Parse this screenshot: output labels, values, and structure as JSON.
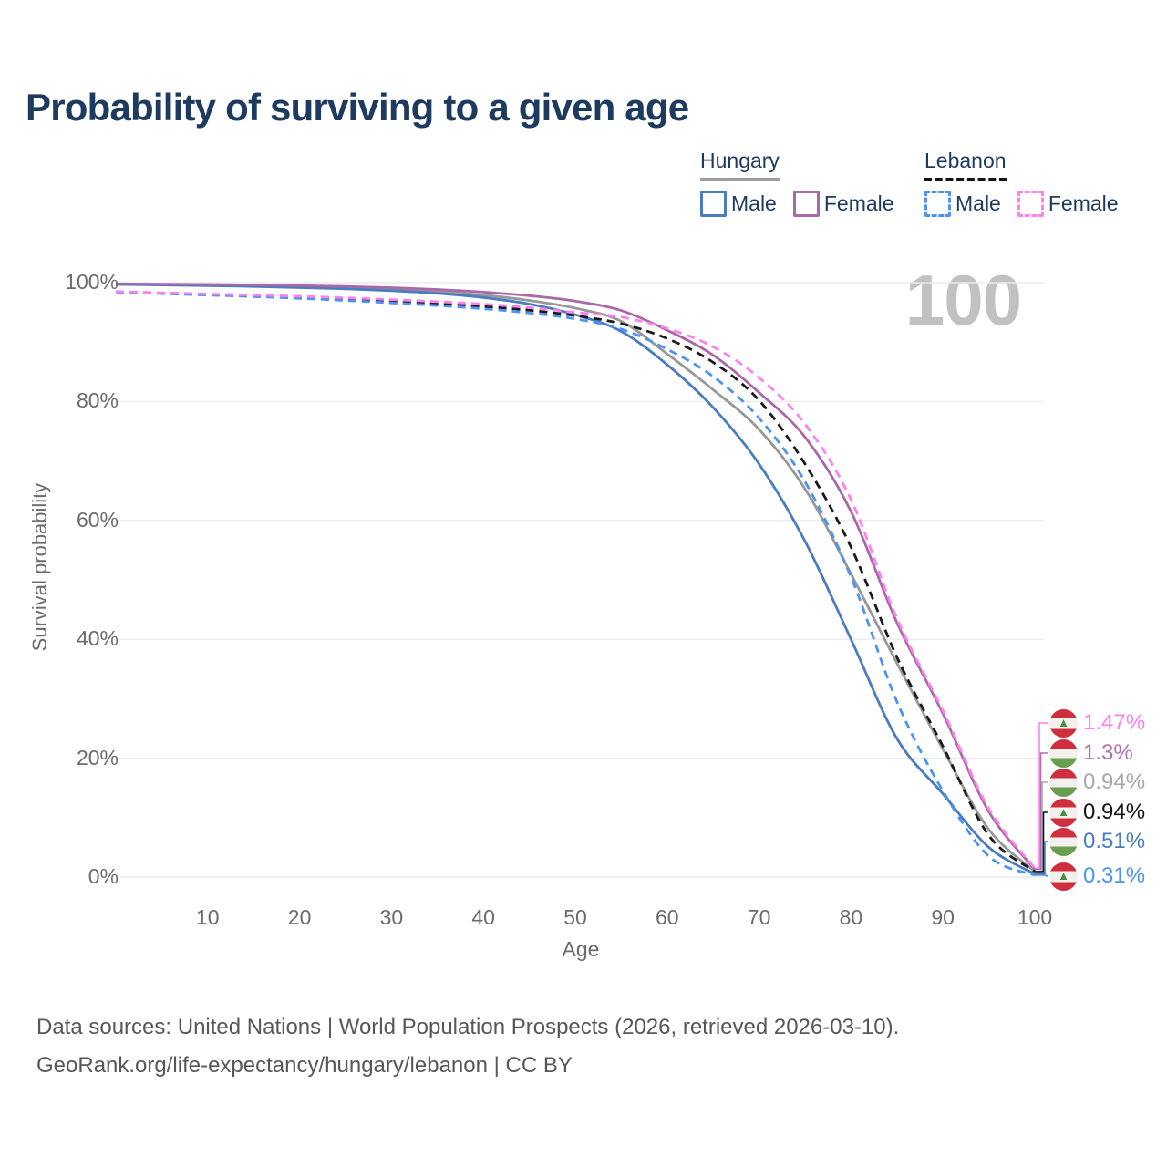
{
  "title": "Probability of surviving to a given age",
  "watermark": "100",
  "legend": {
    "groups": [
      {
        "country": "Hungary",
        "style": "solid",
        "items": [
          {
            "label": "Male",
            "color": "#4a7cc2"
          },
          {
            "label": "Female",
            "color": "#ab68a7"
          }
        ]
      },
      {
        "country": "Lebanon",
        "style": "dashed",
        "items": [
          {
            "label": "Male",
            "color": "#4c93f2"
          },
          {
            "label": "Female",
            "color": "#ff80ee"
          }
        ]
      }
    ]
  },
  "chart_data": {
    "type": "line",
    "title": "Probability of surviving to a given age",
    "xlabel": "Age",
    "ylabel": "Survival probability",
    "xlim": [
      0,
      100
    ],
    "ylim": [
      0,
      100
    ],
    "grid": "horizontal",
    "x_ticks": [
      10,
      20,
      30,
      40,
      50,
      60,
      70,
      80,
      90,
      100
    ],
    "y_ticks": [
      "0%",
      "20%",
      "40%",
      "60%",
      "80%",
      "100%"
    ],
    "y_tick_values": [
      0,
      20,
      40,
      60,
      80,
      100
    ],
    "x": [
      0,
      5,
      10,
      15,
      20,
      25,
      30,
      35,
      40,
      45,
      50,
      55,
      60,
      65,
      70,
      75,
      80,
      85,
      90,
      95,
      100
    ],
    "series": [
      {
        "name": "Hungary Total",
        "color": "#989898",
        "dash": false,
        "end_label": "0.94%",
        "values": [
          99.75,
          99.68,
          99.6,
          99.48,
          99.32,
          99.15,
          98.9,
          98.5,
          97.9,
          97.0,
          95.7,
          93.5,
          88.0,
          82.0,
          75.3,
          65.3,
          51.0,
          36.0,
          21.5,
          8.0,
          0.94
        ]
      },
      {
        "name": "Hungary Male",
        "color": "#4a7cc2",
        "dash": false,
        "end_label": "0.51%",
        "values": [
          99.7,
          99.6,
          99.5,
          99.35,
          99.15,
          98.95,
          98.65,
          98.2,
          97.5,
          96.4,
          94.6,
          91.8,
          86.2,
          79.0,
          69.5,
          56.5,
          40.0,
          23.3,
          14.0,
          5.0,
          0.51
        ]
      },
      {
        "name": "Hungary Female",
        "color": "#ab68a7",
        "dash": false,
        "end_label": "1.3%",
        "values": [
          99.8,
          99.75,
          99.7,
          99.6,
          99.5,
          99.35,
          99.15,
          98.85,
          98.4,
          97.8,
          96.9,
          95.3,
          92.0,
          87.8,
          81.5,
          74.0,
          61.5,
          42.8,
          27.5,
          11.0,
          1.3
        ]
      },
      {
        "name": "Lebanon Total",
        "color": "#1a1a1a",
        "dash": true,
        "end_label": "0.94%",
        "values": [
          98.45,
          98.22,
          98.0,
          97.78,
          97.5,
          97.2,
          96.85,
          96.5,
          96.0,
          95.35,
          94.45,
          93.1,
          90.6,
          86.6,
          80.2,
          69.5,
          55.5,
          37.0,
          22.0,
          7.0,
          0.94
        ]
      },
      {
        "name": "Lebanon Male",
        "color": "#4c93f2",
        "dash": true,
        "end_label": "0.31%",
        "values": [
          98.4,
          98.15,
          97.9,
          97.65,
          97.35,
          97.0,
          96.6,
          96.15,
          95.6,
          94.9,
          93.9,
          92.2,
          88.8,
          84.2,
          77.2,
          66.5,
          50.5,
          29.5,
          14.5,
          3.5,
          0.31
        ]
      },
      {
        "name": "Lebanon Female",
        "color": "#ff80ee",
        "dash": true,
        "end_label": "1.47%",
        "values": [
          98.5,
          98.3,
          98.1,
          97.9,
          97.7,
          97.45,
          97.15,
          96.8,
          96.4,
          95.8,
          95.0,
          94.2,
          92.3,
          89.2,
          84.0,
          76.2,
          63.5,
          43.5,
          28.0,
          11.5,
          1.47
        ]
      }
    ],
    "end_labels": [
      {
        "text": "1.47%",
        "flag": "lebanon",
        "color": "#ff80ee",
        "series": "Lebanon Female"
      },
      {
        "text": "1.3%",
        "flag": "hungary",
        "color": "#b06fad",
        "series": "Hungary Female"
      },
      {
        "text": "0.94%",
        "flag": "hungary",
        "color": "#a8a8a8",
        "series": "Hungary Total"
      },
      {
        "text": "0.94%",
        "flag": "lebanon",
        "color": "#151515",
        "series": "Lebanon Total"
      },
      {
        "text": "0.51%",
        "flag": "hungary",
        "color": "#4a7cc2",
        "series": "Hungary Male"
      },
      {
        "text": "0.31%",
        "flag": "lebanon",
        "color": "#4c93f2",
        "series": "Lebanon Male"
      }
    ],
    "legend_position": "top-right"
  },
  "footer": {
    "line1": "Data sources: United Nations | World Population Prospects (2026, retrieved 2026-03-10).",
    "line2": "GeoRank.org/life-expectancy/hungary/lebanon | CC BY"
  }
}
